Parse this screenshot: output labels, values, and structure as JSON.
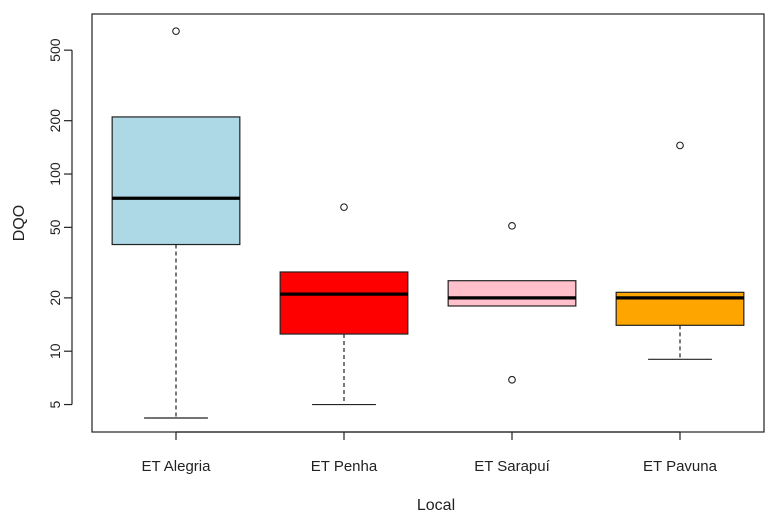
{
  "chart_data": {
    "type": "boxplot",
    "xlabel": "Local",
    "ylabel": "DQO",
    "yscale": "log",
    "ylim": [
      3.5,
      800
    ],
    "yticks": [
      5,
      10,
      20,
      50,
      100,
      200,
      500
    ],
    "grid": false,
    "categories": [
      "ET Alegria",
      "ET Penha",
      "ET Sarapuí",
      "ET Pavuna"
    ],
    "boxes": [
      {
        "name": "ET Alegria",
        "color": "#add8e6",
        "whisker_low": 4.2,
        "q1": 40,
        "median": 73,
        "q3": 210,
        "whisker_high": 210,
        "outliers": [
          640
        ]
      },
      {
        "name": "ET Penha",
        "color": "#ff0000",
        "whisker_low": 5,
        "q1": 12.5,
        "median": 21,
        "q3": 28,
        "whisker_high": 28,
        "outliers": [
          65
        ]
      },
      {
        "name": "ET Sarapuí",
        "color": "#ffc0cb",
        "whisker_low": 18,
        "q1": 18,
        "median": 20,
        "q3": 25,
        "whisker_high": 25,
        "outliers": [
          51,
          6.9
        ]
      },
      {
        "name": "ET Pavuna",
        "color": "#ffa500",
        "whisker_low": 9,
        "q1": 14,
        "median": 20,
        "q3": 21.5,
        "whisker_high": 21.5,
        "outliers": [
          145
        ]
      }
    ]
  }
}
